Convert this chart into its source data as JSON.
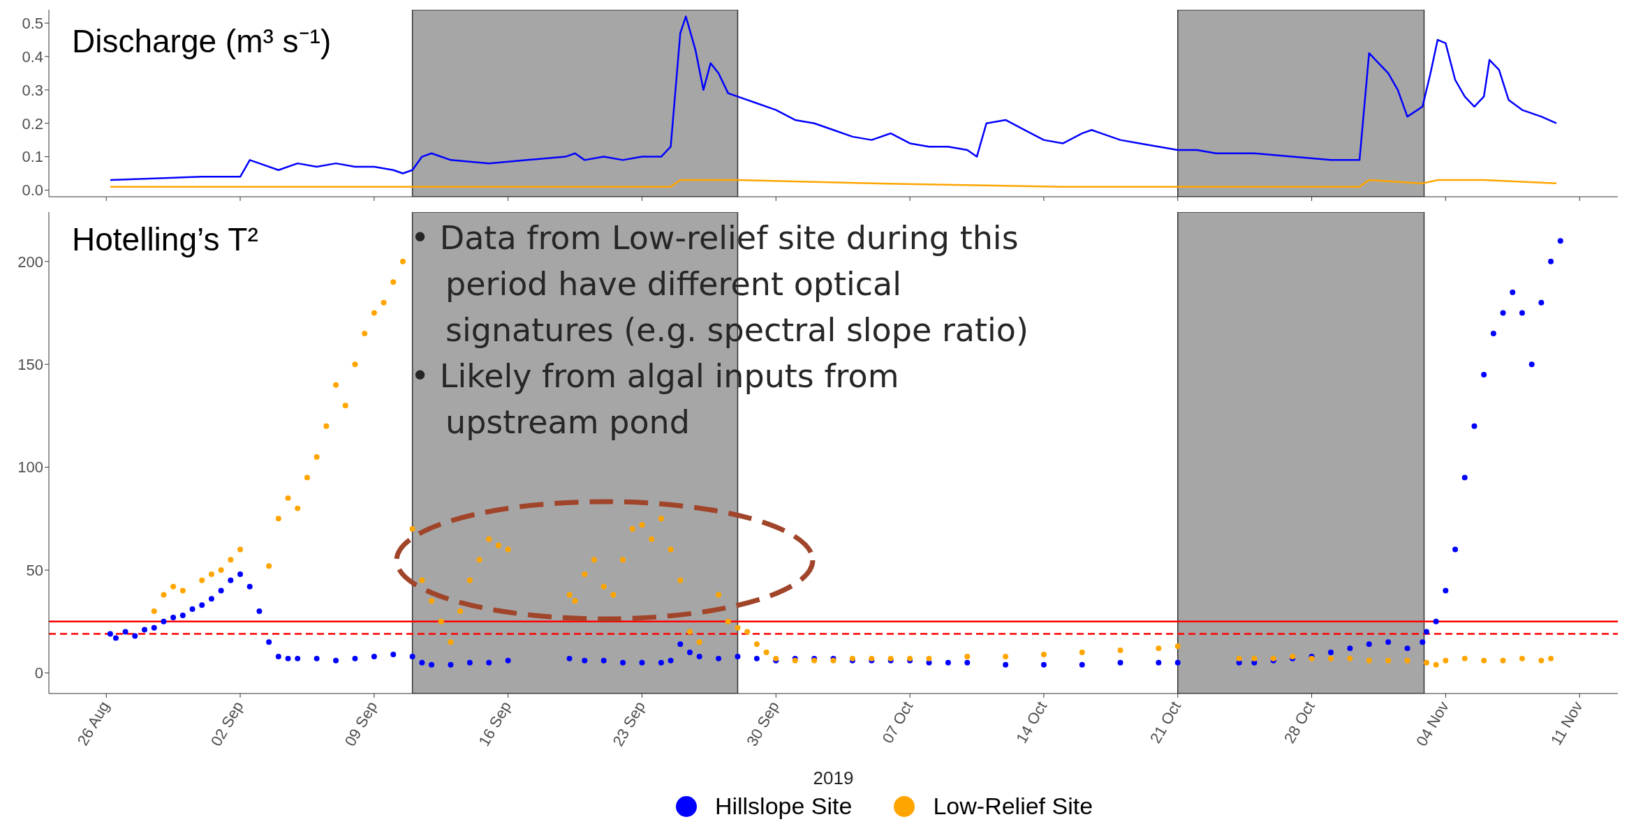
{
  "chart_data": [
    {
      "type": "line",
      "title": "Discharge (m³ s⁻¹)",
      "tick_labels": "y",
      "xlim": [
        "2019-08-23",
        "2019-11-13"
      ],
      "xticks": [
        {
          "value": "2019-08-26",
          "label": null
        },
        {
          "value": "2019-09-02",
          "label": null
        },
        {
          "value": "2019-09-09",
          "label": null
        },
        {
          "value": "2019-09-16",
          "label": null
        },
        {
          "value": "2019-09-23",
          "label": null
        },
        {
          "value": "2019-09-30",
          "label": null
        },
        {
          "value": "2019-10-07",
          "label": null
        },
        {
          "value": "2019-10-14",
          "label": null
        },
        {
          "value": "2019-10-21",
          "label": null
        },
        {
          "value": "2019-10-28",
          "label": null
        },
        {
          "value": "2019-11-04",
          "label": null
        },
        {
          "value": "2019-11-11",
          "label": null
        }
      ],
      "ylim": [
        -0.02,
        0.54
      ],
      "yticks": [
        {
          "value": 0,
          "label": "0.0"
        },
        0.1,
        0.2,
        0.3,
        0.4,
        0.5
      ],
      "bands": [
        {
          "axis": "x",
          "from": "2019-09-11",
          "to": "2019-09-28",
          "color": "#a6a6a6"
        },
        {
          "axis": "x",
          "from": "2019-10-21",
          "to": "2019-11-02T21:00",
          "color": "#a6a6a6"
        }
      ],
      "series": [
        {
          "color": "#0000ff",
          "x": [
            "2019-08-26T05:00",
            "2019-08-31",
            "2019-09-02",
            "2019-09-02T12:00",
            "2019-09-03",
            "2019-09-04",
            "2019-09-05",
            "2019-09-06",
            "2019-09-07",
            "2019-09-08",
            "2019-09-09",
            "2019-09-10",
            "2019-09-10T12:00",
            "2019-09-11",
            "2019-09-11T12:00",
            "2019-09-12",
            "2019-09-13",
            "2019-09-15",
            "2019-09-17",
            "2019-09-19",
            "2019-09-19T12:00",
            "2019-09-20",
            "2019-09-21",
            "2019-09-22",
            "2019-09-23",
            "2019-09-24",
            "2019-09-24T12:00",
            "2019-09-25",
            "2019-09-25T07:00",
            "2019-09-25T19:00",
            "2019-09-26T05:00",
            "2019-09-26T14:00",
            "2019-09-27",
            "2019-09-27T12:00",
            "2019-09-28",
            "2019-09-29",
            "2019-09-30",
            "2019-10-01",
            "2019-10-02",
            "2019-10-03",
            "2019-10-04",
            "2019-10-05",
            "2019-10-06",
            "2019-10-07",
            "2019-10-08",
            "2019-10-09",
            "2019-10-10",
            "2019-10-10T12:00",
            "2019-10-11",
            "2019-10-12",
            "2019-10-13",
            "2019-10-14",
            "2019-10-15",
            "2019-10-16",
            "2019-10-16T12:00",
            "2019-10-17",
            "2019-10-18",
            "2019-10-19",
            "2019-10-20",
            "2019-10-21",
            "2019-10-22",
            "2019-10-23",
            "2019-10-25",
            "2019-10-27",
            "2019-10-29",
            "2019-10-30T12:00",
            "2019-10-31",
            "2019-10-31T12:00",
            "2019-11-01",
            "2019-11-01T12:00",
            "2019-11-02",
            "2019-11-02T19:00",
            "2019-11-03T05:00",
            "2019-11-03T14:00",
            "2019-11-04",
            "2019-11-04T12:00",
            "2019-11-05",
            "2019-11-05T12:00",
            "2019-11-06",
            "2019-11-06T07:00",
            "2019-11-06T19:00",
            "2019-11-07T07:00",
            "2019-11-08",
            "2019-11-09",
            "2019-11-09T19:00"
          ],
          "values": [
            0.03,
            0.04,
            0.04,
            0.09,
            0.08,
            0.06,
            0.08,
            0.07,
            0.08,
            0.07,
            0.07,
            0.06,
            0.05,
            0.06,
            0.1,
            0.11,
            0.09,
            0.08,
            0.09,
            0.1,
            0.11,
            0.09,
            0.1,
            0.09,
            0.1,
            0.1,
            0.13,
            0.47,
            0.52,
            0.42,
            0.3,
            0.38,
            0.35,
            0.29,
            0.28,
            0.26,
            0.24,
            0.21,
            0.2,
            0.18,
            0.16,
            0.15,
            0.17,
            0.14,
            0.13,
            0.13,
            0.12,
            0.1,
            0.2,
            0.21,
            0.18,
            0.15,
            0.14,
            0.17,
            0.18,
            0.17,
            0.15,
            0.14,
            0.13,
            0.12,
            0.12,
            0.11,
            0.11,
            0.1,
            0.09,
            0.09,
            0.41,
            0.38,
            0.35,
            0.3,
            0.22,
            0.25,
            0.35,
            0.45,
            0.44,
            0.33,
            0.28,
            0.25,
            0.28,
            0.39,
            0.36,
            0.27,
            0.24,
            0.22,
            0.2
          ]
        },
        {
          "color": "#ffa500",
          "x": [
            "2019-08-26T05:00",
            "2019-09-11",
            "2019-09-24T12:00",
            "2019-09-25",
            "2019-09-28",
            "2019-10-05",
            "2019-10-15",
            "2019-10-30T12:00",
            "2019-10-31",
            "2019-11-02T19:00",
            "2019-11-03T14:00",
            "2019-11-06",
            "2019-11-09T19:00"
          ],
          "values": [
            0.01,
            0.01,
            0.01,
            0.03,
            0.03,
            0.02,
            0.01,
            0.01,
            0.03,
            0.02,
            0.03,
            0.03,
            0.02
          ]
        }
      ]
    },
    {
      "type": "scatter",
      "title": "Hotelling’s T²",
      "xlabel": "2019",
      "legend": "bottom",
      "marker": "circle",
      "xlim": [
        "2019-08-23",
        "2019-11-13"
      ],
      "xticks": [
        {
          "value": "2019-08-26",
          "label": "26 Aug"
        },
        {
          "value": "2019-09-02",
          "label": "02 Sep"
        },
        {
          "value": "2019-09-09",
          "label": "09 Sep"
        },
        {
          "value": "2019-09-16",
          "label": "16 Sep"
        },
        {
          "value": "2019-09-23",
          "label": "23 Sep"
        },
        {
          "value": "2019-09-30",
          "label": "30 Sep"
        },
        {
          "value": "2019-10-07",
          "label": "07 Oct"
        },
        {
          "value": "2019-10-14",
          "label": "14 Oct"
        },
        {
          "value": "2019-10-21",
          "label": "21 Oct"
        },
        {
          "value": "2019-10-28",
          "label": "28 Oct"
        },
        {
          "value": "2019-11-04",
          "label": "04 Nov"
        },
        {
          "value": "2019-11-11",
          "label": "11 Nov"
        }
      ],
      "ylim": [
        -10,
        224
      ],
      "yticks": [
        0,
        50,
        100,
        150,
        200
      ],
      "bands": [
        {
          "axis": "x",
          "from": "2019-09-11",
          "to": "2019-09-28",
          "color": "#a6a6a6"
        },
        {
          "axis": "x",
          "from": "2019-10-21",
          "to": "2019-11-02T21:00",
          "color": "#a6a6a6"
        }
      ],
      "ref_lines": [
        {
          "axis": "y",
          "value": 25,
          "color": "#ff0000",
          "line_style": "solid"
        },
        {
          "axis": "y",
          "value": 19,
          "color": "#ff0000",
          "line_style": "dashed"
        }
      ],
      "annotations": [
        "• Data from Low-relief site during this period have different optical signatures (e.g. spectral slope ratio)",
        "• Likely from algal inputs from upstream pond"
      ],
      "series": [
        {
          "name": "Hillslope Site",
          "color": "#0000ff",
          "x": [
            "2019-08-26T05:00",
            "2019-08-26T12:00",
            "2019-08-27",
            "2019-08-27T12:00",
            "2019-08-28",
            "2019-08-28T12:00",
            "2019-08-29",
            "2019-08-29T12:00",
            "2019-08-30",
            "2019-08-30T12:00",
            "2019-08-31",
            "2019-08-31T12:00",
            "2019-09-01",
            "2019-09-01T12:00",
            "2019-09-02",
            "2019-09-02T12:00",
            "2019-09-03",
            "2019-09-03T12:00",
            "2019-09-04",
            "2019-09-04T12:00",
            "2019-09-05",
            "2019-09-06",
            "2019-09-07",
            "2019-09-08",
            "2019-09-09",
            "2019-09-10",
            "2019-09-11",
            "2019-09-11T12:00",
            "2019-09-12",
            "2019-09-13",
            "2019-09-14",
            "2019-09-15",
            "2019-09-16",
            "2019-09-19T05:00",
            "2019-09-20",
            "2019-09-21",
            "2019-09-22",
            "2019-09-23",
            "2019-09-24",
            "2019-09-24T12:00",
            "2019-09-25",
            "2019-09-25T12:00",
            "2019-09-26",
            "2019-09-27",
            "2019-09-28",
            "2019-09-29",
            "2019-09-30",
            "2019-10-01",
            "2019-10-02",
            "2019-10-03",
            "2019-10-04",
            "2019-10-05",
            "2019-10-06",
            "2019-10-07",
            "2019-10-08",
            "2019-10-09",
            "2019-10-10",
            "2019-10-12",
            "2019-10-14",
            "2019-10-16",
            "2019-10-18",
            "2019-10-20",
            "2019-10-21",
            "2019-10-24T05:00",
            "2019-10-25",
            "2019-10-26",
            "2019-10-27",
            "2019-10-28",
            "2019-10-29",
            "2019-10-30",
            "2019-10-31",
            "2019-11-01",
            "2019-11-02",
            "2019-11-02T19:00",
            "2019-11-03",
            "2019-11-03T12:00",
            "2019-11-04",
            "2019-11-04T12:00",
            "2019-11-05",
            "2019-11-05T12:00",
            "2019-11-06",
            "2019-11-06T12:00",
            "2019-11-07",
            "2019-11-07T12:00",
            "2019-11-08",
            "2019-11-08T12:00",
            "2019-11-09",
            "2019-11-09T12:00",
            "2019-11-10"
          ],
          "values": [
            19,
            17,
            20,
            18,
            21,
            22,
            25,
            27,
            28,
            31,
            33,
            36,
            40,
            45,
            48,
            42,
            30,
            15,
            8,
            7,
            7,
            7,
            6,
            7,
            8,
            9,
            8,
            5,
            4,
            4,
            5,
            5,
            6,
            7,
            6,
            6,
            5,
            5,
            5,
            6,
            14,
            10,
            8,
            7,
            8,
            7,
            6,
            7,
            7,
            7,
            6,
            6,
            6,
            6,
            5,
            5,
            5,
            4,
            4,
            4,
            5,
            5,
            5,
            5,
            5,
            6,
            7,
            8,
            10,
            12,
            14,
            15,
            12,
            15,
            20,
            25,
            40,
            60,
            95,
            120,
            145,
            165,
            175,
            185,
            175,
            150,
            180,
            200,
            210
          ]
        },
        {
          "name": "Low-Relief Site",
          "color": "#ffa500",
          "x": [
            "2019-08-28T12:00",
            "2019-08-29",
            "2019-08-29T12:00",
            "2019-08-30",
            "2019-08-31",
            "2019-08-31T12:00",
            "2019-09-01",
            "2019-09-01T12:00",
            "2019-09-02",
            "2019-09-03T12:00",
            "2019-09-04",
            "2019-09-04T12:00",
            "2019-09-05",
            "2019-09-05T12:00",
            "2019-09-06",
            "2019-09-06T12:00",
            "2019-09-07",
            "2019-09-07T12:00",
            "2019-09-08",
            "2019-09-08T12:00",
            "2019-09-09",
            "2019-09-09T12:00",
            "2019-09-10",
            "2019-09-10T12:00",
            "2019-09-11",
            "2019-09-11T12:00",
            "2019-09-12",
            "2019-09-12T12:00",
            "2019-09-13",
            "2019-09-13T12:00",
            "2019-09-14",
            "2019-09-14T12:00",
            "2019-09-15",
            "2019-09-15T12:00",
            "2019-09-16",
            "2019-09-19T05:00",
            "2019-09-19T12:00",
            "2019-09-20",
            "2019-09-20T12:00",
            "2019-09-21",
            "2019-09-21T12:00",
            "2019-09-22",
            "2019-09-22T12:00",
            "2019-09-23",
            "2019-09-23T12:00",
            "2019-09-24",
            "2019-09-24T12:00",
            "2019-09-25",
            "2019-09-25T12:00",
            "2019-09-26",
            "2019-09-26T12:00",
            "2019-09-27",
            "2019-09-27T12:00",
            "2019-09-28",
            "2019-09-28T12:00",
            "2019-09-29",
            "2019-09-29T12:00",
            "2019-09-30",
            "2019-10-01",
            "2019-10-02",
            "2019-10-03",
            "2019-10-04",
            "2019-10-05",
            "2019-10-06",
            "2019-10-07",
            "2019-10-08",
            "2019-10-10",
            "2019-10-12",
            "2019-10-14",
            "2019-10-16",
            "2019-10-18",
            "2019-10-20",
            "2019-10-21",
            "2019-10-24T05:00",
            "2019-10-25",
            "2019-10-26",
            "2019-10-27",
            "2019-10-28",
            "2019-10-29",
            "2019-10-30",
            "2019-10-31",
            "2019-11-01",
            "2019-11-02",
            "2019-11-03",
            "2019-11-03T12:00",
            "2019-11-04",
            "2019-11-05",
            "2019-11-06",
            "2019-11-07",
            "2019-11-08",
            "2019-11-09",
            "2019-11-09T12:00"
          ],
          "values": [
            30,
            38,
            42,
            40,
            45,
            48,
            50,
            55,
            60,
            52,
            75,
            85,
            80,
            95,
            105,
            120,
            140,
            130,
            150,
            165,
            175,
            180,
            190,
            200,
            70,
            45,
            35,
            25,
            15,
            30,
            45,
            55,
            65,
            62,
            60,
            38,
            35,
            48,
            55,
            42,
            38,
            55,
            70,
            72,
            65,
            75,
            60,
            45,
            20,
            15,
            30,
            38,
            25,
            22,
            20,
            14,
            10,
            7,
            6,
            6,
            6,
            7,
            7,
            7,
            7,
            7,
            8,
            8,
            9,
            10,
            11,
            12,
            13,
            7,
            7,
            7,
            8,
            7,
            7,
            7,
            6,
            6,
            6,
            5,
            4,
            6,
            7,
            6,
            6,
            7,
            6,
            7
          ]
        }
      ]
    }
  ]
}
